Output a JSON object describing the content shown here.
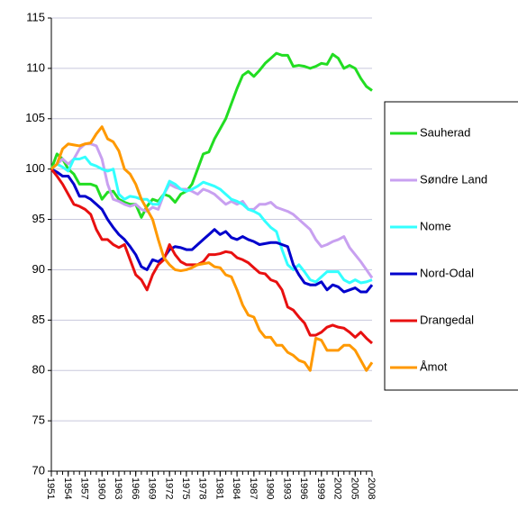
{
  "chart_data": {
    "type": "line",
    "x": [
      1951,
      1952,
      1953,
      1954,
      1955,
      1956,
      1957,
      1958,
      1959,
      1960,
      1961,
      1962,
      1963,
      1964,
      1965,
      1966,
      1967,
      1968,
      1969,
      1970,
      1971,
      1972,
      1973,
      1974,
      1975,
      1976,
      1977,
      1978,
      1979,
      1980,
      1981,
      1982,
      1983,
      1984,
      1985,
      1986,
      1987,
      1988,
      1989,
      1990,
      1991,
      1992,
      1993,
      1994,
      1995,
      1996,
      1997,
      1998,
      1999,
      2000,
      2001,
      2002,
      2003,
      2004,
      2005,
      2006,
      2007,
      2008
    ],
    "xlim": [
      1951,
      2008
    ],
    "xticks": [
      1951,
      1954,
      1957,
      1960,
      1963,
      1966,
      1969,
      1972,
      1975,
      1978,
      1981,
      1984,
      1987,
      1990,
      1993,
      1996,
      1999,
      2002,
      2005,
      2008
    ],
    "ylim": [
      70,
      115
    ],
    "yticks": [
      70,
      75,
      80,
      85,
      90,
      95,
      100,
      105,
      110,
      115
    ],
    "grid": true,
    "legend": "right",
    "series": [
      {
        "name": "Sauherad",
        "color": "#22dd22",
        "values": [
          100,
          101.5,
          101,
          100,
          99.5,
          98.5,
          98.5,
          98.5,
          98.3,
          97,
          97.7,
          97.8,
          97,
          96.7,
          96.5,
          96.5,
          95.2,
          96.3,
          97,
          96.8,
          97.5,
          97.3,
          96.7,
          97.5,
          97.8,
          98.5,
          100,
          101.5,
          101.7,
          103,
          104,
          105,
          106.5,
          108,
          109.3,
          109.7,
          109.2,
          109.8,
          110.5,
          111,
          111.5,
          111.3,
          111.3,
          110.2,
          110.3,
          110.2,
          110,
          110.2,
          110.5,
          110.4,
          111.4,
          111,
          110,
          110.3,
          110,
          109,
          108.2,
          107.8
        ]
      },
      {
        "name": "Søndre Land",
        "color": "#c8a0f0",
        "values": [
          100,
          100.5,
          101,
          100.5,
          101,
          102,
          102.5,
          102.5,
          102.3,
          101,
          98.5,
          97,
          96.8,
          96.5,
          96.3,
          96.5,
          96,
          95.8,
          96.2,
          96,
          97.5,
          98.5,
          98.2,
          98,
          98,
          97.8,
          97.5,
          98,
          97.8,
          97.5,
          97,
          96.5,
          96.8,
          96.5,
          96.8,
          96,
          96,
          96.5,
          96.5,
          96.7,
          96.2,
          96,
          95.8,
          95.5,
          95,
          94.5,
          94,
          93,
          92.3,
          92.5,
          92.8,
          93,
          93.3,
          92.2,
          91.5,
          90.8,
          90,
          89.2
        ]
      },
      {
        "name": "Nome",
        "color": "#33ffff",
        "values": [
          100,
          100.5,
          100.2,
          99.8,
          101,
          101,
          101.2,
          100.5,
          100.3,
          100,
          99.8,
          100,
          97.5,
          97,
          97.3,
          97.2,
          97,
          97,
          96.5,
          96.5,
          97.5,
          98.8,
          98.5,
          98,
          97.8,
          98,
          98.3,
          98.7,
          98.5,
          98.3,
          98,
          97.5,
          97,
          96.8,
          96.5,
          96,
          95.8,
          95.5,
          94.8,
          94.2,
          93.8,
          92,
          90.5,
          90,
          90.5,
          89.8,
          89,
          88.8,
          89.3,
          89.8,
          89.8,
          89.8,
          89,
          88.7,
          89,
          88.7,
          88.8,
          89
        ]
      },
      {
        "name": "Nord-Odal",
        "color": "#0000cc",
        "values": [
          100,
          99.7,
          99.3,
          99.3,
          98.5,
          97.3,
          97.3,
          97,
          96.5,
          96,
          95,
          94.2,
          93.5,
          93,
          92.3,
          91.5,
          90.3,
          90,
          91,
          90.8,
          91.2,
          92,
          92.3,
          92.2,
          92,
          92,
          92.5,
          93,
          93.5,
          94,
          93.5,
          93.8,
          93.2,
          93,
          93.3,
          93,
          92.8,
          92.5,
          92.6,
          92.7,
          92.7,
          92.5,
          92.3,
          90.5,
          89.5,
          88.7,
          88.5,
          88.5,
          88.8,
          88,
          88.5,
          88.3,
          87.8,
          88,
          88.2,
          87.8,
          87.8,
          88.5
        ]
      },
      {
        "name": "Drangedal",
        "color": "#e81010",
        "values": [
          100,
          99.3,
          98.5,
          97.5,
          96.5,
          96.3,
          96,
          95.5,
          94,
          93,
          93,
          92.5,
          92.2,
          92.5,
          91,
          89.5,
          89,
          88,
          89.5,
          90.5,
          91,
          92.5,
          91.5,
          90.8,
          90.5,
          90.5,
          90.5,
          90.8,
          91.5,
          91.5,
          91.6,
          91.8,
          91.7,
          91.2,
          91,
          90.7,
          90.2,
          89.7,
          89.6,
          89,
          88.8,
          88,
          86.3,
          86,
          85.3,
          84.7,
          83.5,
          83.5,
          83.8,
          84.3,
          84.5,
          84.3,
          84.2,
          83.8,
          83.3,
          83.8,
          83.2,
          82.7
        ]
      },
      {
        "name": "Åmot",
        "color": "#ff9900",
        "values": [
          100,
          100.5,
          102,
          102.5,
          102.4,
          102.3,
          102.5,
          102.6,
          103.5,
          104.2,
          103,
          102.7,
          101.8,
          100,
          99.5,
          98.5,
          97,
          96,
          95,
          93,
          91.2,
          90.5,
          90,
          89.9,
          90,
          90.2,
          90.5,
          90.6,
          90.7,
          90.3,
          90.2,
          89.5,
          89.3,
          88,
          86.5,
          85.5,
          85.3,
          84,
          83.3,
          83.3,
          82.5,
          82.5,
          81.8,
          81.5,
          81,
          80.8,
          80,
          83.2,
          83,
          82,
          82,
          82,
          82.5,
          82.5,
          82,
          81,
          80,
          80.8
        ]
      }
    ]
  }
}
